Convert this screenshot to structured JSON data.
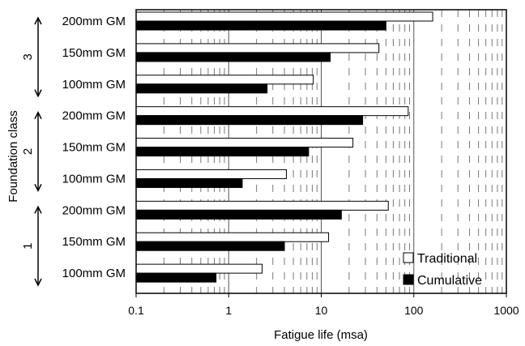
{
  "chart_data": {
    "type": "bar",
    "orientation": "horizontal",
    "xscale": "log",
    "xlim": [
      0.1,
      1000
    ],
    "xticks": [
      "0.1",
      "1",
      "10",
      "100",
      "1000"
    ],
    "xlabel": "Fatigue life (msa)",
    "ylabel": "Foundation class",
    "grid": "dashed minor vertical gridlines",
    "legend_position": "bottom-right",
    "groups": [
      {
        "class_label": "1",
        "categories": [
          "100mm GM",
          "150mm GM",
          "200mm GM"
        ]
      },
      {
        "class_label": "2",
        "categories": [
          "100mm GM",
          "150mm GM",
          "200mm GM"
        ]
      },
      {
        "class_label": "3",
        "categories": [
          "100mm GM",
          "150mm GM",
          "200mm GM"
        ]
      }
    ],
    "categories_bottom_to_top": [
      "100mm GM",
      "150mm GM",
      "200mm GM",
      "100mm GM",
      "150mm GM",
      "200mm GM",
      "100mm GM",
      "150mm GM",
      "200mm GM"
    ],
    "series": [
      {
        "name": "Traditional",
        "color": "#ffffff",
        "values": [
          2.3,
          12,
          53,
          4.2,
          22,
          87,
          8.2,
          42,
          160
        ]
      },
      {
        "name": "Cumulative",
        "color": "#000000",
        "values": [
          0.73,
          4,
          16.5,
          1.4,
          7.3,
          28,
          2.6,
          12.5,
          50
        ]
      }
    ]
  }
}
